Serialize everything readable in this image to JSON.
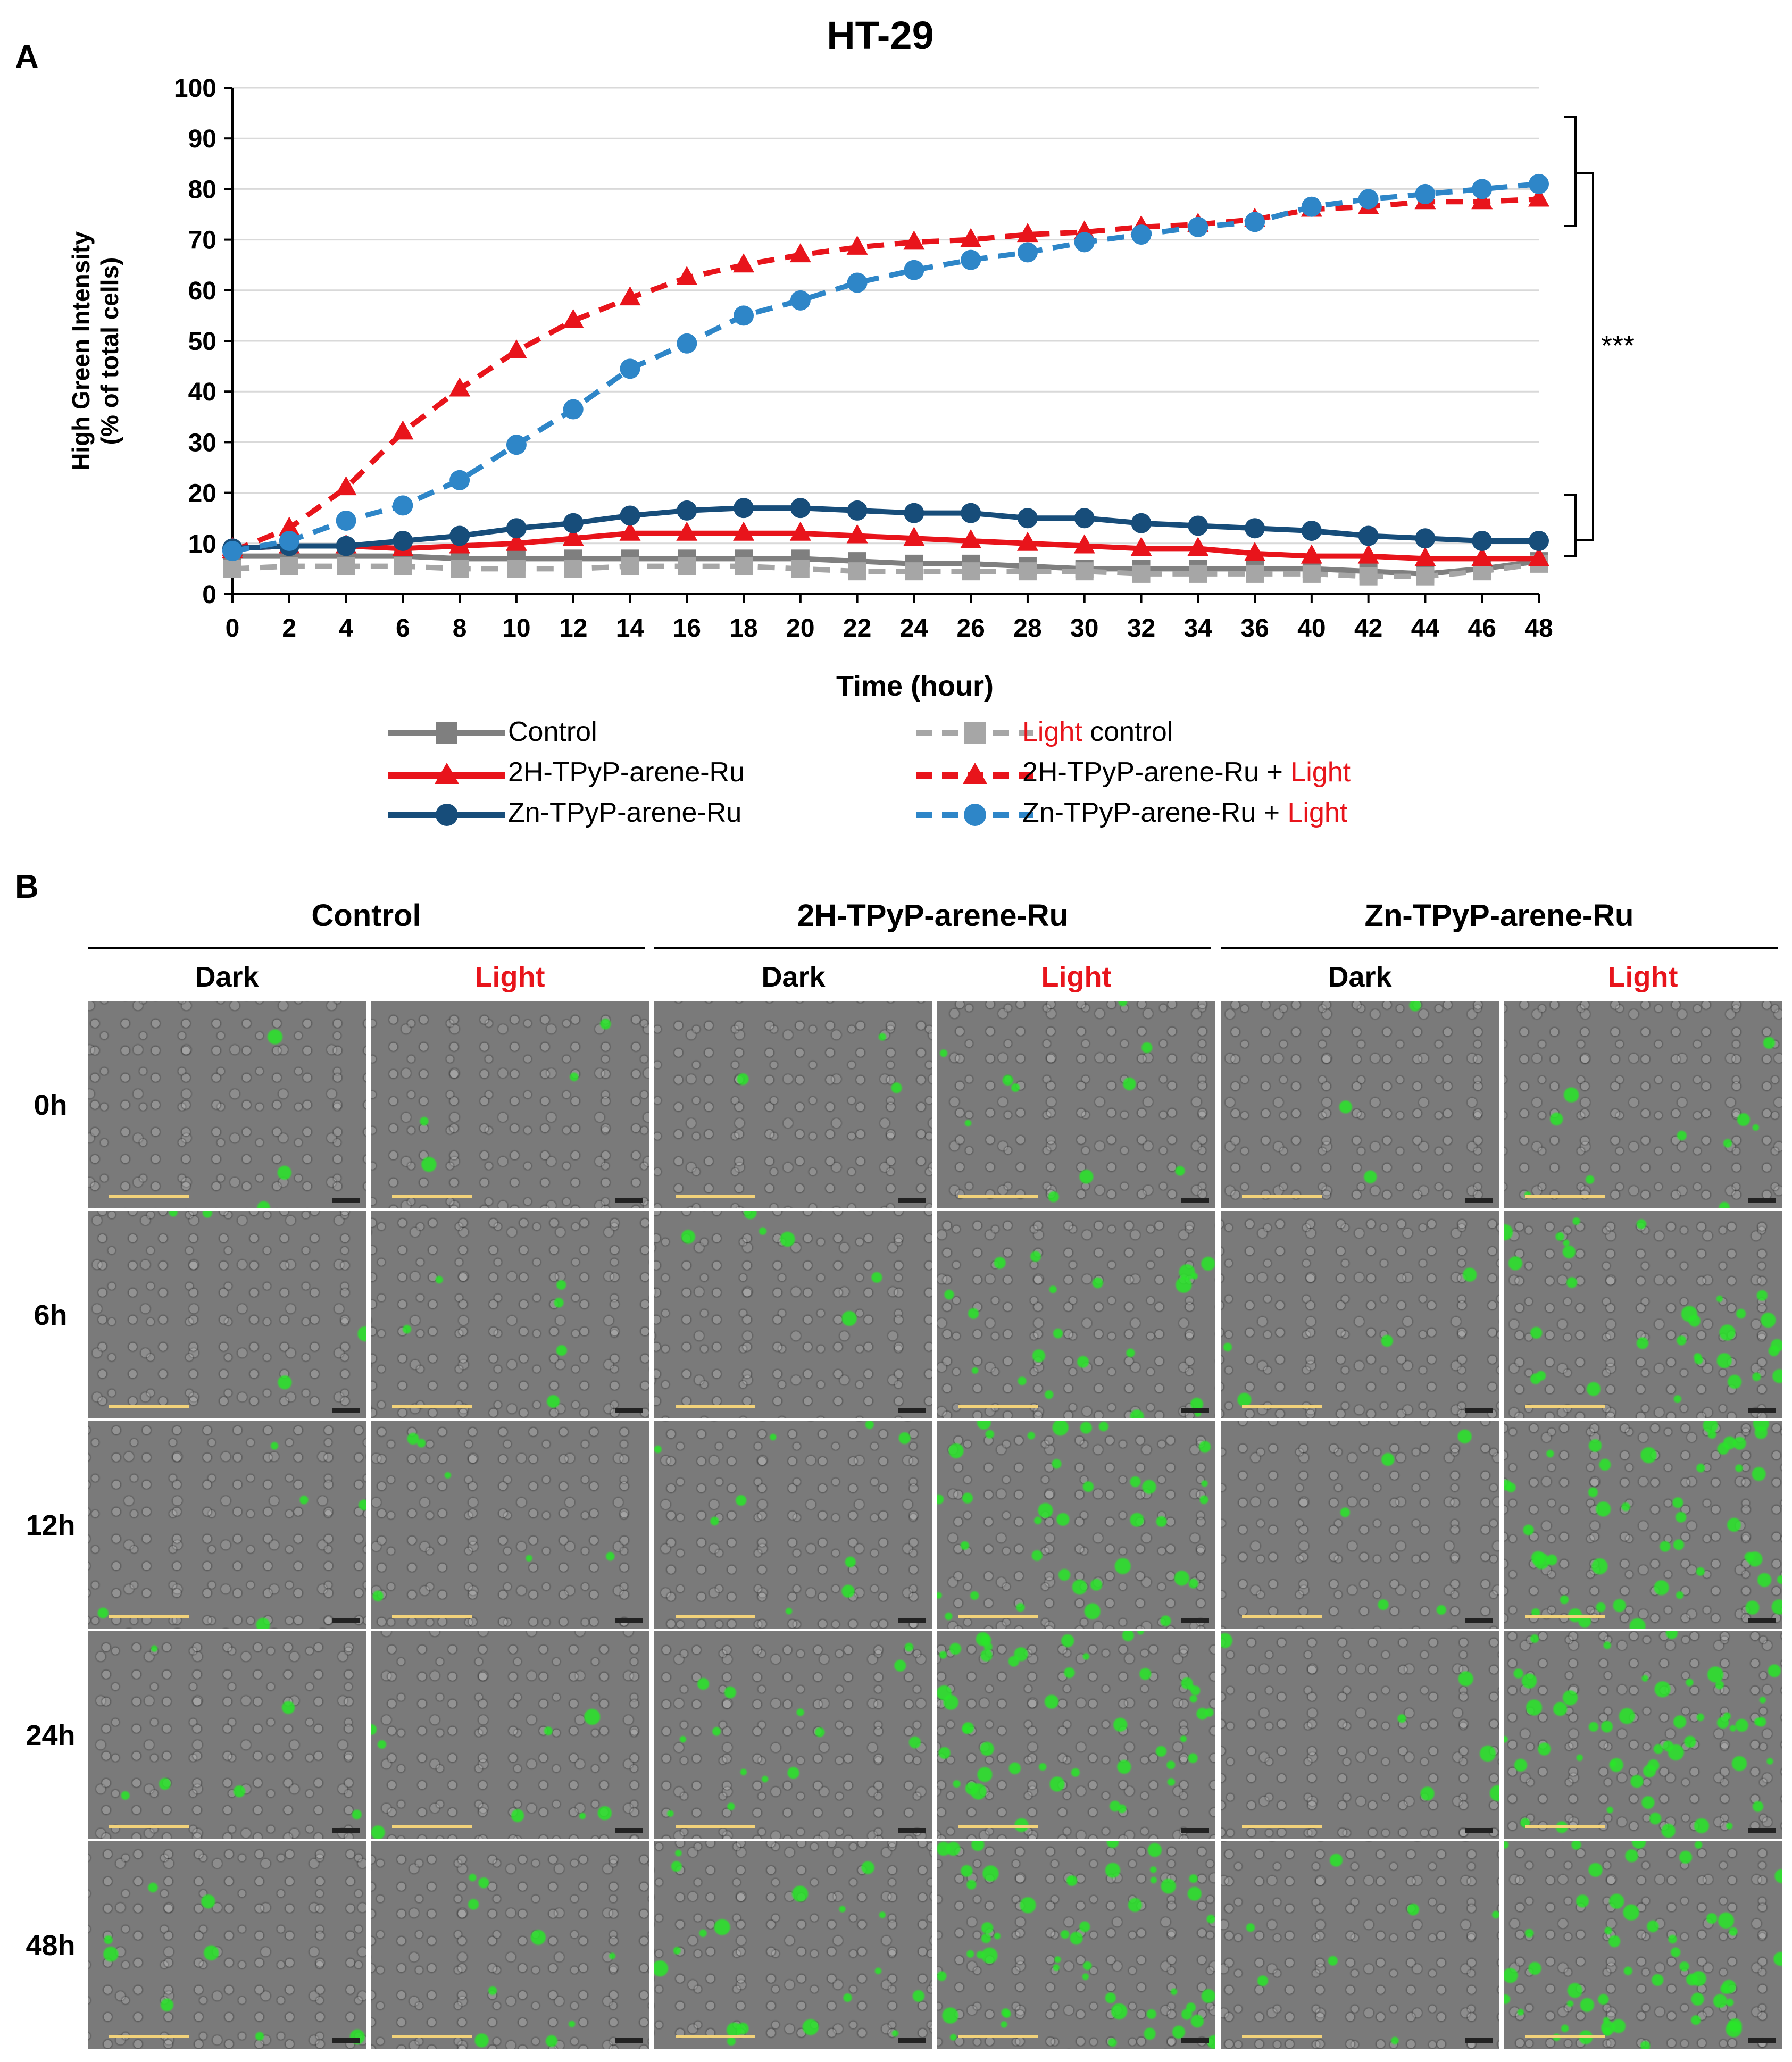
{
  "panel_a": {
    "letter": "A"
  },
  "panel_b": {
    "letter": "B"
  },
  "chart_data": {
    "type": "line",
    "title": "HT-29",
    "xlabel": "Time (hour)",
    "ylabel_line1": "High Green Intensity",
    "ylabel_line2": "(% of total cells)",
    "ylim": [
      0,
      100
    ],
    "yticks": [
      0,
      10,
      20,
      30,
      40,
      50,
      60,
      70,
      80,
      90,
      100
    ],
    "grid": true,
    "x": [
      0,
      2,
      4,
      6,
      8,
      10,
      12,
      14,
      16,
      18,
      20,
      22,
      24,
      26,
      28,
      30,
      32,
      34,
      36,
      40,
      42,
      44,
      46,
      48
    ],
    "significance": "***",
    "series": [
      {
        "name": "Control",
        "color": "#7f7f7f",
        "dash": false,
        "marker": "square",
        "values": [
          7.5,
          7.5,
          7.5,
          7.5,
          7,
          7,
          7,
          7,
          7,
          7,
          7,
          6.5,
          6,
          6,
          5.5,
          5,
          5,
          5,
          5,
          5,
          4.5,
          4,
          5,
          6.5
        ]
      },
      {
        "name": "Light control",
        "color": "#a6a6a6",
        "dash": true,
        "marker": "square",
        "values": [
          5,
          5.5,
          5.5,
          5.5,
          5,
          5,
          5,
          5.5,
          5.5,
          5.5,
          5,
          4.5,
          4.5,
          4.5,
          4.5,
          4.5,
          4,
          4,
          4,
          4,
          3.5,
          3.5,
          4.5,
          6
        ]
      },
      {
        "name": "2H-TPyP-arene-Ru",
        "color": "#e8141b",
        "dash": false,
        "marker": "triangle",
        "values": [
          9,
          9.5,
          9.5,
          9,
          9.5,
          10,
          11,
          12,
          12,
          12,
          12,
          11.5,
          11,
          10.5,
          10,
          9.5,
          9,
          9,
          8,
          7.5,
          7.5,
          7,
          7,
          7
        ]
      },
      {
        "name": "2H-TPyP-arene-Ru + Light",
        "color": "#e8141b",
        "dash": true,
        "marker": "triangle",
        "values": [
          8.5,
          13,
          21,
          32,
          40.5,
          48,
          54,
          58.5,
          62.5,
          65,
          67,
          68.5,
          69.5,
          70,
          71,
          71.5,
          72.5,
          73,
          74,
          76,
          76.5,
          77.5,
          77.5,
          78
        ]
      },
      {
        "name": "Zn-TPyP-arene-Ru",
        "color": "#174d7a",
        "dash": false,
        "marker": "circle",
        "values": [
          9,
          9.5,
          9.5,
          10.5,
          11.5,
          13,
          14,
          15.5,
          16.5,
          17,
          17,
          16.5,
          16,
          16,
          15,
          15,
          14,
          13.5,
          13,
          12.5,
          11.5,
          11,
          10.5,
          10.5
        ]
      },
      {
        "name": "Zn-TPyP-arene-Ru + Light",
        "color": "#2e86c8",
        "dash": true,
        "marker": "circle",
        "values": [
          8.5,
          10.5,
          14.5,
          17.5,
          22.5,
          29.5,
          36.5,
          44.5,
          49.5,
          55,
          58,
          61.5,
          64,
          66,
          67.5,
          69.5,
          71,
          72.5,
          73.5,
          76.5,
          78,
          79,
          80,
          81
        ]
      }
    ]
  },
  "legend": {
    "control": "Control",
    "light_word": "Light",
    "light_control_suffix": " control",
    "h2": "2H-TPyP-arene-Ru",
    "h2_light_prefix": "2H-TPyP-arene-Ru + ",
    "zn": "Zn-TPyP-arene-Ru",
    "zn_light_prefix": "Zn-TPyP-arene-Ru + "
  },
  "grid": {
    "groups": [
      "Control",
      "2H-TPyP-arene-Ru",
      "Zn-TPyP-arene-Ru"
    ],
    "conditions": [
      "Dark",
      "Light",
      "Dark",
      "Light",
      "Dark",
      "Light"
    ],
    "times": [
      "0h",
      "6h",
      "12h",
      "24h",
      "48h"
    ],
    "dark_color": "#000000",
    "light_color": "#e8141b"
  }
}
